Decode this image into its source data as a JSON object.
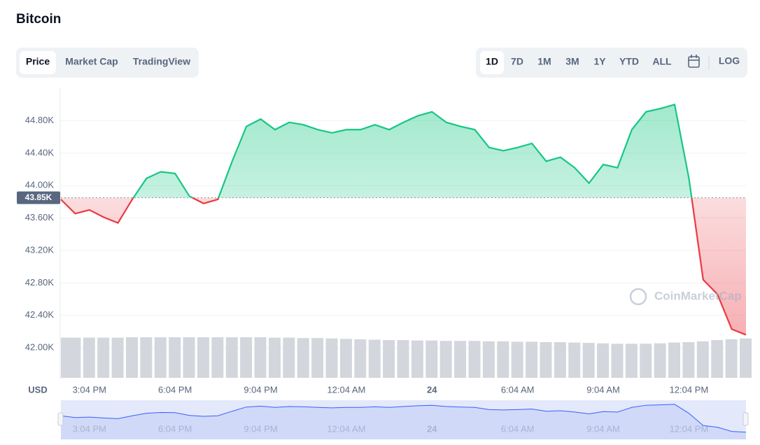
{
  "title": "Bitcoin",
  "tabs": [
    "Price",
    "Market Cap",
    "TradingView"
  ],
  "ranges": [
    "1D",
    "7D",
    "1M",
    "3M",
    "1Y",
    "YTD",
    "ALL"
  ],
  "log_button": "LOG",
  "chart_data": {
    "type": "line",
    "currency_label": "USD",
    "watermark": "CoinMarketCap",
    "baseline": {
      "value": 43850,
      "label": "43.85K"
    },
    "up_color": "#16c784",
    "down_color": "#ea3943",
    "volume_color": "#d3d6dc",
    "xlim": [
      0,
      24
    ],
    "xticks": [
      {
        "value": 1,
        "label": "3:04 PM"
      },
      {
        "value": 4,
        "label": "6:04 PM"
      },
      {
        "value": 7,
        "label": "9:04 PM"
      },
      {
        "value": 10,
        "label": "12:04 AM"
      },
      {
        "value": 13,
        "label": "24"
      },
      {
        "value": 16,
        "label": "6:04 AM"
      },
      {
        "value": 19,
        "label": "9:04 AM"
      },
      {
        "value": 22,
        "label": "12:04 PM"
      }
    ],
    "ylim": [
      41630,
      45210
    ],
    "yticks": [
      {
        "value": 42000,
        "label": "42.00K"
      },
      {
        "value": 42400,
        "label": "42.40K"
      },
      {
        "value": 42800,
        "label": "42.80K"
      },
      {
        "value": 43200,
        "label": "43.20K"
      },
      {
        "value": 43600,
        "label": "43.60K"
      },
      {
        "value": 44000,
        "label": "44.00K"
      },
      {
        "value": 44400,
        "label": "44.40K"
      },
      {
        "value": 44800,
        "label": "44.80K"
      }
    ],
    "grid": true,
    "x": [
      0,
      0.5,
      1,
      1.5,
      2,
      2.5,
      3,
      3.5,
      4,
      4.5,
      5,
      5.5,
      6,
      6.5,
      7,
      7.5,
      8,
      8.5,
      9,
      9.5,
      10,
      10.5,
      11,
      11.5,
      12,
      12.5,
      13,
      13.5,
      14,
      14.5,
      15,
      15.5,
      16,
      16.5,
      17,
      17.5,
      18,
      18.5,
      19,
      19.5,
      20,
      20.5,
      21,
      21.5,
      22,
      22.5,
      23,
      23.5,
      24
    ],
    "values": [
      43830,
      43655,
      43700,
      43610,
      43540,
      43830,
      44090,
      44170,
      44150,
      43870,
      43780,
      43830,
      44300,
      44730,
      44820,
      44690,
      44780,
      44750,
      44690,
      44650,
      44690,
      44690,
      44750,
      44690,
      44780,
      44860,
      44910,
      44780,
      44730,
      44690,
      44470,
      44430,
      44470,
      44520,
      44300,
      44350,
      44220,
      44030,
      44260,
      44220,
      44690,
      44910,
      44950,
      45000,
      44090,
      42840,
      42660,
      42230,
      42160
    ],
    "volume": [
      99,
      99,
      99,
      99,
      99,
      100,
      100,
      100,
      100,
      100,
      100,
      100,
      100,
      100,
      100,
      99,
      99,
      98,
      98,
      97,
      96,
      95,
      94,
      93,
      93,
      92,
      92,
      91,
      91,
      91,
      90,
      90,
      89,
      89,
      88,
      88,
      87,
      86,
      85,
      84,
      84,
      84,
      85,
      87,
      88,
      90,
      93,
      95,
      97
    ]
  }
}
